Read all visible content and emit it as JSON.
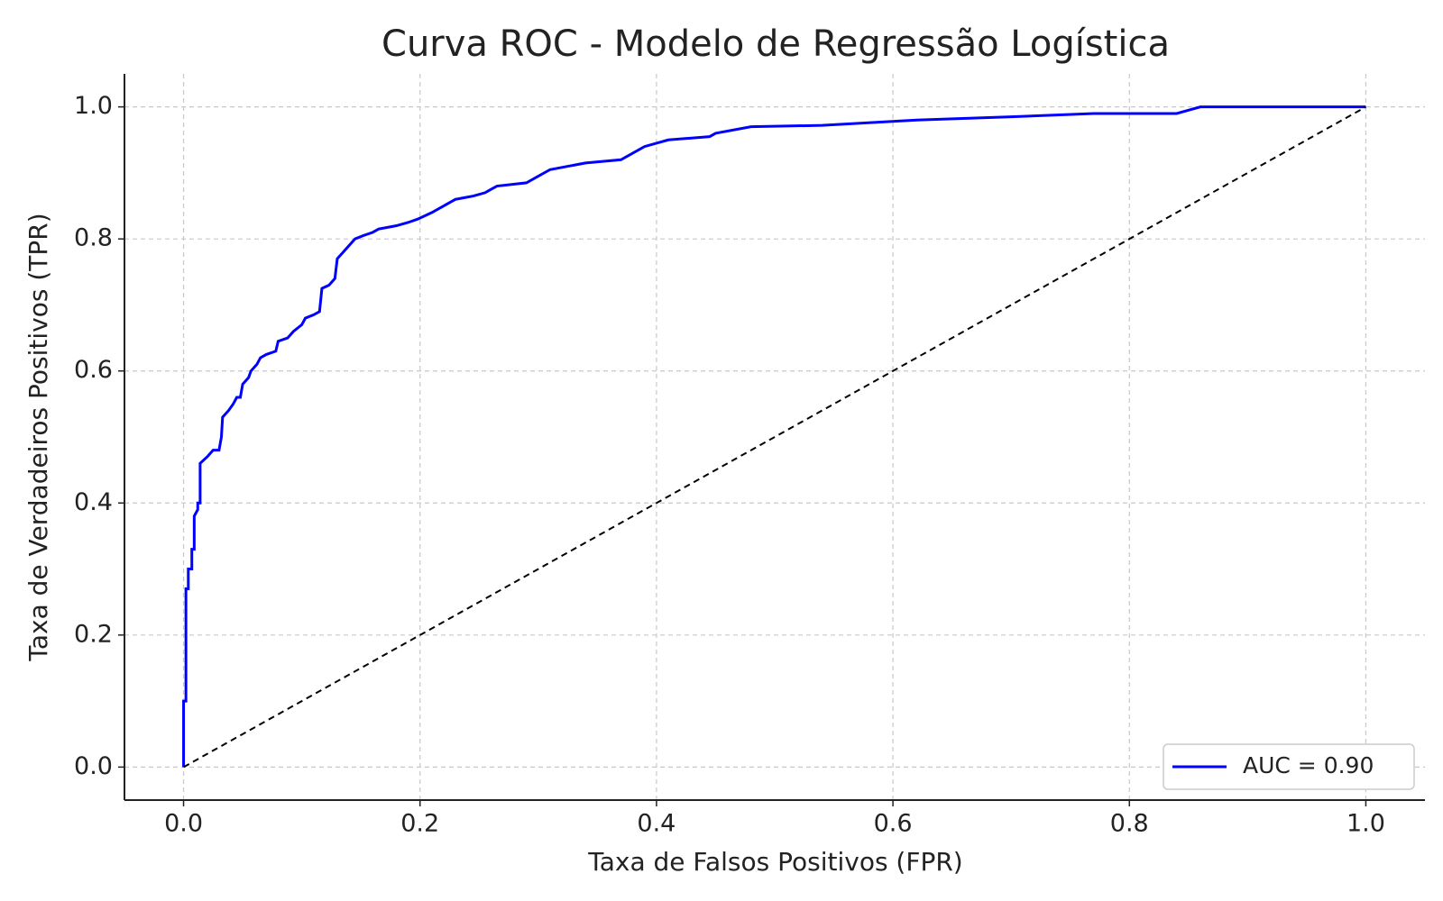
{
  "chart_data": {
    "type": "line",
    "title": "Curva ROC - Modelo de Regressão Logística",
    "x_label": "Taxa de Falsos Positivos (FPR)",
    "y_label": "Taxa de Verdadeiros Positivos (TPR)",
    "xlim": [
      -0.05,
      1.05
    ],
    "ylim": [
      -0.05,
      1.05
    ],
    "xticks": [
      {
        "value": 0,
        "label": "0.0"
      },
      0.2,
      0.4,
      0.6,
      0.8,
      {
        "value": 1,
        "label": "1.0"
      }
    ],
    "yticks": [
      {
        "value": 0,
        "label": "0.0"
      },
      0.2,
      0.4,
      0.6,
      0.8,
      {
        "value": 1,
        "label": "1.0"
      }
    ],
    "grid": true,
    "legend": "lower right",
    "series": [
      {
        "name": "AUC = 0.90",
        "color": "#0000ff",
        "style": "solid",
        "x": [
          0,
          0,
          0.002,
          0.002,
          0.004,
          0.004,
          0.007,
          0.007,
          0.009,
          0.009,
          0.012,
          0.012,
          0.014,
          0.014,
          0.02,
          0.025,
          0.03,
          0.032,
          0.033,
          0.038,
          0.042,
          0.045,
          0.048,
          0.05,
          0.055,
          0.057,
          0.062,
          0.065,
          0.07,
          0.078,
          0.08,
          0.088,
          0.093,
          0.1,
          0.103,
          0.11,
          0.115,
          0.117,
          0.123,
          0.128,
          0.13,
          0.135,
          0.14,
          0.145,
          0.152,
          0.16,
          0.165,
          0.18,
          0.19,
          0.198,
          0.21,
          0.22,
          0.23,
          0.245,
          0.255,
          0.26,
          0.265,
          0.29,
          0.3,
          0.31,
          0.325,
          0.34,
          0.37,
          0.38,
          0.39,
          0.4,
          0.41,
          0.445,
          0.45,
          0.48,
          0.54,
          0.62,
          0.7,
          0.77,
          0.84,
          0.85,
          0.86,
          1.0
        ],
        "values": [
          0,
          0.1,
          0.1,
          0.27,
          0.27,
          0.3,
          0.3,
          0.33,
          0.33,
          0.38,
          0.39,
          0.4,
          0.4,
          0.46,
          0.47,
          0.48,
          0.48,
          0.5,
          0.53,
          0.54,
          0.55,
          0.56,
          0.56,
          0.58,
          0.59,
          0.6,
          0.61,
          0.62,
          0.625,
          0.63,
          0.645,
          0.65,
          0.66,
          0.67,
          0.68,
          0.685,
          0.69,
          0.725,
          0.73,
          0.74,
          0.77,
          0.78,
          0.79,
          0.8,
          0.805,
          0.81,
          0.815,
          0.82,
          0.825,
          0.83,
          0.84,
          0.85,
          0.86,
          0.865,
          0.87,
          0.875,
          0.88,
          0.885,
          0.895,
          0.905,
          0.91,
          0.915,
          0.92,
          0.93,
          0.94,
          0.945,
          0.95,
          0.955,
          0.96,
          0.97,
          0.972,
          0.98,
          0.985,
          0.99,
          0.99,
          0.995,
          1.0,
          1.0
        ]
      },
      {
        "color": "#000000",
        "style": "dashed",
        "x": [
          0,
          1
        ],
        "values": [
          0,
          1
        ]
      }
    ]
  }
}
